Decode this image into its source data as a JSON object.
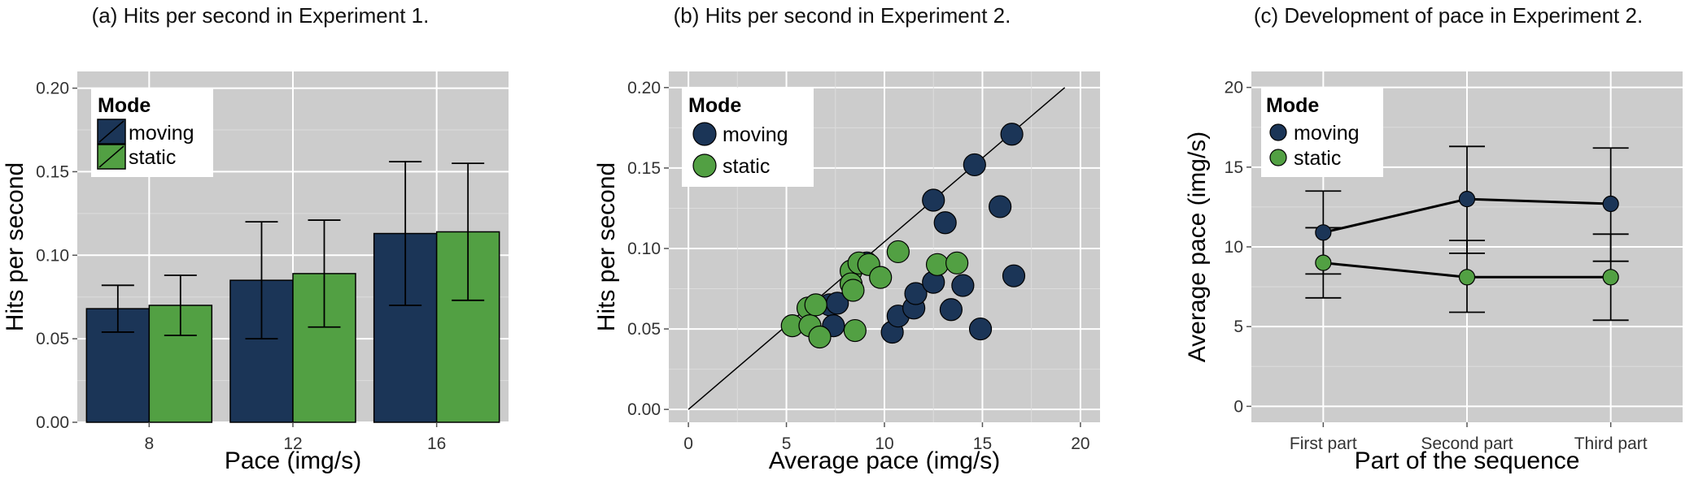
{
  "chart_data": [
    {
      "type": "bar",
      "title": "(a) Hits per second in Experiment 1.",
      "xlabel": "Pace (img/s)",
      "ylabel": "Hits per second",
      "categories": [
        "8",
        "12",
        "16"
      ],
      "ylim": [
        0,
        0.21
      ],
      "yticks": [
        "0.00",
        "0.05",
        "0.10",
        "0.15",
        "0.20"
      ],
      "legend": {
        "title": "Mode",
        "position": "top-left"
      },
      "series": [
        {
          "name": "moving",
          "color": "#1b3557",
          "values": [
            0.068,
            0.085,
            0.113
          ],
          "err_low": [
            0.054,
            0.05,
            0.07
          ],
          "err_high": [
            0.082,
            0.12,
            0.156
          ]
        },
        {
          "name": "static",
          "color": "#52a043",
          "values": [
            0.07,
            0.089,
            0.114
          ],
          "err_low": [
            0.052,
            0.057,
            0.073
          ],
          "err_high": [
            0.088,
            0.121,
            0.155
          ]
        }
      ],
      "grid": true
    },
    {
      "type": "scatter",
      "title": "(b) Hits per second in Experiment 2.",
      "xlabel": "Average pace (img/s)",
      "ylabel": "Hits per second",
      "xlim": [
        -1,
        21
      ],
      "ylim": [
        -0.008,
        0.21
      ],
      "xticks": [
        "0",
        "5",
        "10",
        "15",
        "20"
      ],
      "yticks": [
        "0.00",
        "0.05",
        "0.10",
        "0.15",
        "0.20"
      ],
      "legend": {
        "title": "Mode",
        "position": "top-left"
      },
      "reference_line": {
        "from": [
          0,
          0
        ],
        "to": [
          19.2,
          0.2
        ]
      },
      "series": [
        {
          "name": "moving",
          "color": "#1b3557",
          "points": [
            [
              7.2,
              0.065
            ],
            [
              7.6,
              0.066
            ],
            [
              7.4,
              0.052
            ],
            [
              9.1,
              0.091
            ],
            [
              10.4,
              0.048
            ],
            [
              10.7,
              0.058
            ],
            [
              11.5,
              0.063
            ],
            [
              11.6,
              0.072
            ],
            [
              12.5,
              0.079
            ],
            [
              12.5,
              0.13
            ],
            [
              13.1,
              0.116
            ],
            [
              13.4,
              0.062
            ],
            [
              14.0,
              0.077
            ],
            [
              14.6,
              0.152
            ],
            [
              14.9,
              0.05
            ],
            [
              15.9,
              0.126
            ],
            [
              16.5,
              0.171
            ],
            [
              16.6,
              0.083
            ]
          ]
        },
        {
          "name": "static",
          "color": "#52a043",
          "points": [
            [
              5.3,
              0.052
            ],
            [
              6.1,
              0.063
            ],
            [
              6.2,
              0.052
            ],
            [
              6.5,
              0.065
            ],
            [
              6.7,
              0.045
            ],
            [
              8.3,
              0.086
            ],
            [
              8.3,
              0.078
            ],
            [
              8.4,
              0.074
            ],
            [
              8.5,
              0.049
            ],
            [
              8.7,
              0.091
            ],
            [
              9.2,
              0.09
            ],
            [
              9.8,
              0.082
            ],
            [
              10.7,
              0.098
            ],
            [
              12.7,
              0.09
            ],
            [
              13.7,
              0.091
            ]
          ]
        }
      ],
      "grid": true
    },
    {
      "type": "line",
      "title": "(c) Development of pace in Experiment 2.",
      "xlabel": "Part of the sequence",
      "ylabel": "Average pace (img/s)",
      "categories": [
        "First part",
        "Second part",
        "Third part"
      ],
      "ylim": [
        -1,
        21
      ],
      "yticks": [
        "0",
        "5",
        "10",
        "15",
        "20"
      ],
      "legend": {
        "title": "Mode",
        "position": "top-left"
      },
      "series": [
        {
          "name": "moving",
          "color": "#1b3557",
          "values": [
            10.9,
            13.0,
            12.7
          ],
          "err_low": [
            8.3,
            9.6,
            9.1
          ],
          "err_high": [
            13.5,
            16.3,
            16.2
          ]
        },
        {
          "name": "static",
          "color": "#52a043",
          "values": [
            9.0,
            8.1,
            8.1
          ],
          "err_low": [
            6.8,
            5.9,
            5.4
          ],
          "err_high": [
            11.2,
            10.4,
            10.8
          ]
        }
      ],
      "grid": true
    }
  ]
}
